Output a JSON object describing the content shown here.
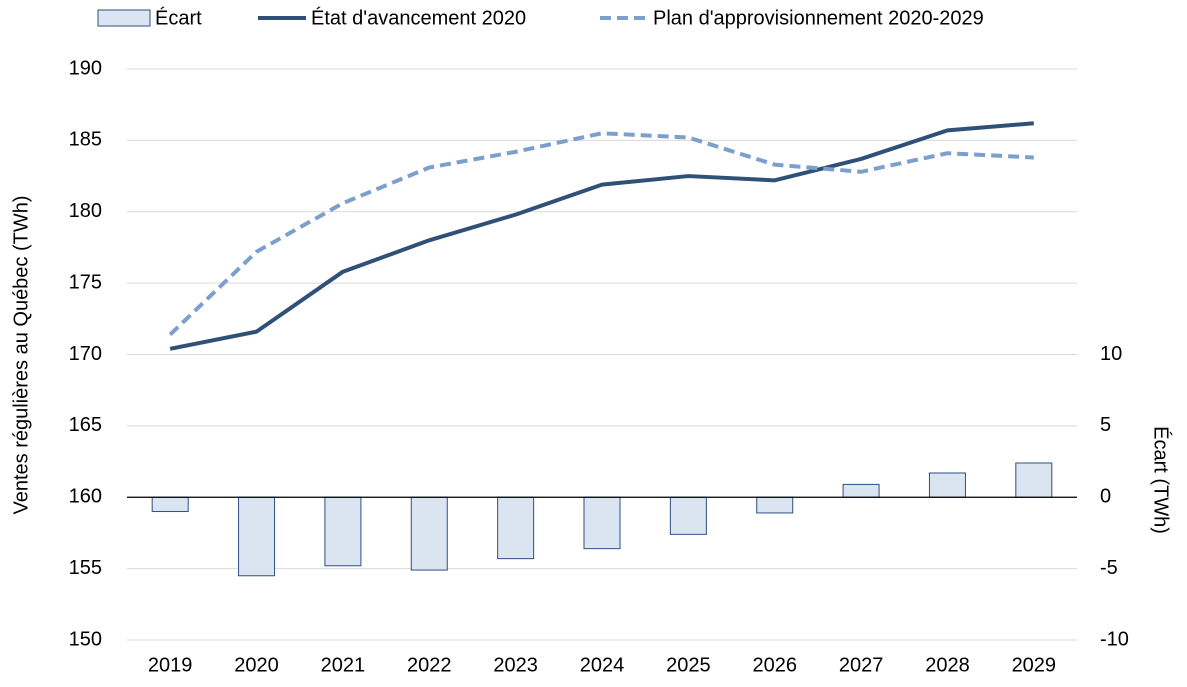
{
  "chart_data": {
    "type": "combo",
    "y_label": "Ventes régulières au Québec (TWh)",
    "y2_label": "Écart (TWh)",
    "categories": [
      "2019",
      "2020",
      "2021",
      "2022",
      "2023",
      "2024",
      "2025",
      "2026",
      "2027",
      "2028",
      "2029"
    ],
    "series": [
      {
        "name": "Écart",
        "type": "bar",
        "axis": "y2",
        "color": "#dae5f1",
        "edge_color": "#2e5080",
        "values": [
          -1.0,
          -5.5,
          -4.8,
          -5.1,
          -4.3,
          -3.6,
          -2.6,
          -1.1,
          0.9,
          1.7,
          2.4
        ]
      },
      {
        "name": "État d'avancement 2020",
        "type": "line",
        "color": "#2f5178",
        "dashed": false,
        "values": [
          170.4,
          171.6,
          175.8,
          178.0,
          179.8,
          181.9,
          182.5,
          182.2,
          183.7,
          185.7,
          186.2
        ]
      },
      {
        "name": "Plan d'approvisionnement 2020-2029",
        "type": "line",
        "color": "#7ba0cc",
        "dashed": true,
        "values": [
          171.4,
          177.2,
          180.6,
          183.1,
          184.2,
          185.5,
          185.2,
          183.3,
          182.8,
          184.1,
          183.8
        ]
      }
    ],
    "ylim": [
      150,
      190
    ],
    "yticks": [
      150,
      155,
      160,
      165,
      170,
      175,
      180,
      185,
      190
    ],
    "y2lim": [
      -10,
      30
    ],
    "y2ticks": [
      -10,
      -5,
      0,
      5,
      10
    ],
    "grid": true,
    "legend": "top"
  }
}
